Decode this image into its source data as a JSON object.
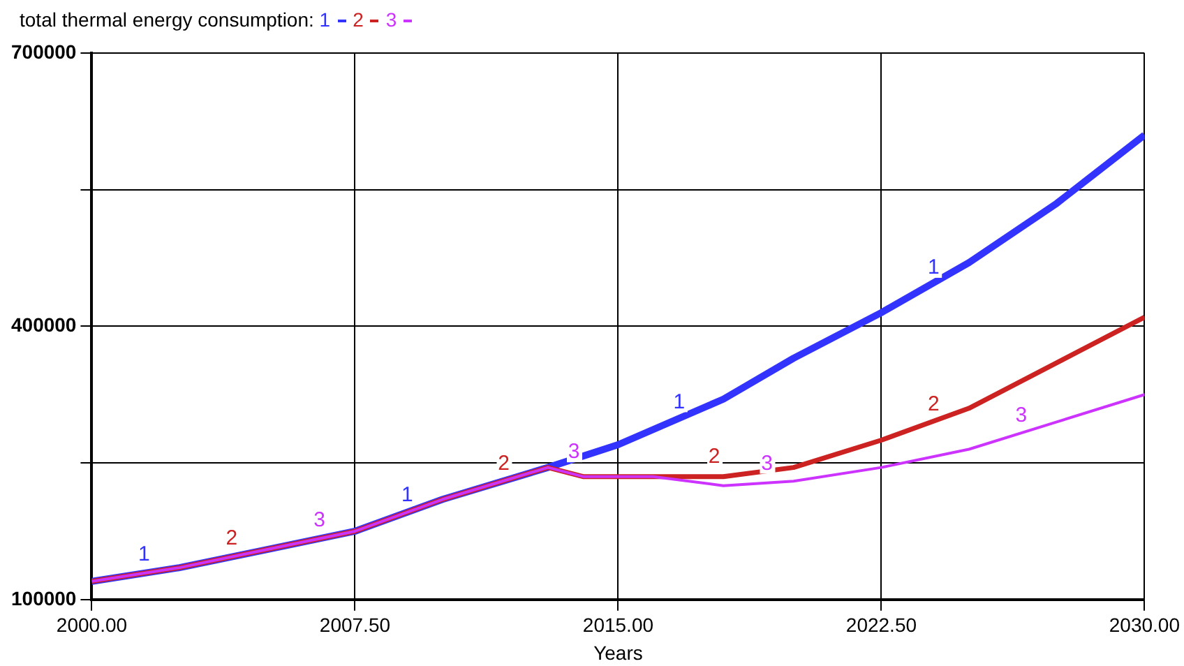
{
  "chart_data": {
    "type": "line",
    "title": "total thermal energy consumption:",
    "xlabel": "Years",
    "legend": "top left",
    "grid": true,
    "line_style": "solid",
    "marker": "none",
    "xlim": [
      2000,
      2030
    ],
    "xticks": [
      {
        "value": 2000,
        "label": "2000.00"
      },
      {
        "value": 2007.5,
        "label": "2007.50"
      },
      {
        "value": 2015,
        "label": "2015.00"
      },
      {
        "value": 2022.5,
        "label": "2022.50"
      },
      {
        "value": 2030,
        "label": "2030.00"
      }
    ],
    "ylim": [
      100000,
      700000
    ],
    "yticks": [
      100000,
      {
        "value": 250000,
        "label": null
      },
      400000,
      {
        "value": 550000,
        "label": null
      },
      700000
    ],
    "series": [
      {
        "name": "1",
        "color": "#3333ff",
        "x": [
          2000,
          2002.5,
          2005,
          2007.5,
          2010,
          2013,
          2015,
          2018,
          2020,
          2022.5,
          2025,
          2027.5,
          2030
        ],
        "values": [
          120000,
          135000,
          155000,
          175000,
          210000,
          245000,
          270000,
          320000,
          365000,
          415000,
          470000,
          535000,
          610000
        ]
      },
      {
        "name": "2",
        "color": "#cc2222",
        "x": [
          2000,
          2002.5,
          2005,
          2007.5,
          2010,
          2013,
          2014,
          2017,
          2018,
          2020,
          2022.5,
          2025,
          2027.5,
          2030
        ],
        "values": [
          120000,
          135000,
          155000,
          175000,
          210000,
          245000,
          235000,
          235000,
          235000,
          245000,
          275000,
          310000,
          360000,
          410000
        ]
      },
      {
        "name": "3",
        "color": "#cc33ff",
        "x": [
          2000,
          2002.5,
          2005,
          2007.5,
          2010,
          2013,
          2014,
          2016,
          2018,
          2020,
          2022.5,
          2025,
          2027.5,
          2030
        ],
        "values": [
          120000,
          135000,
          155000,
          175000,
          210000,
          245000,
          235000,
          235000,
          225000,
          230000,
          245000,
          265000,
          295000,
          325000
        ]
      }
    ]
  }
}
